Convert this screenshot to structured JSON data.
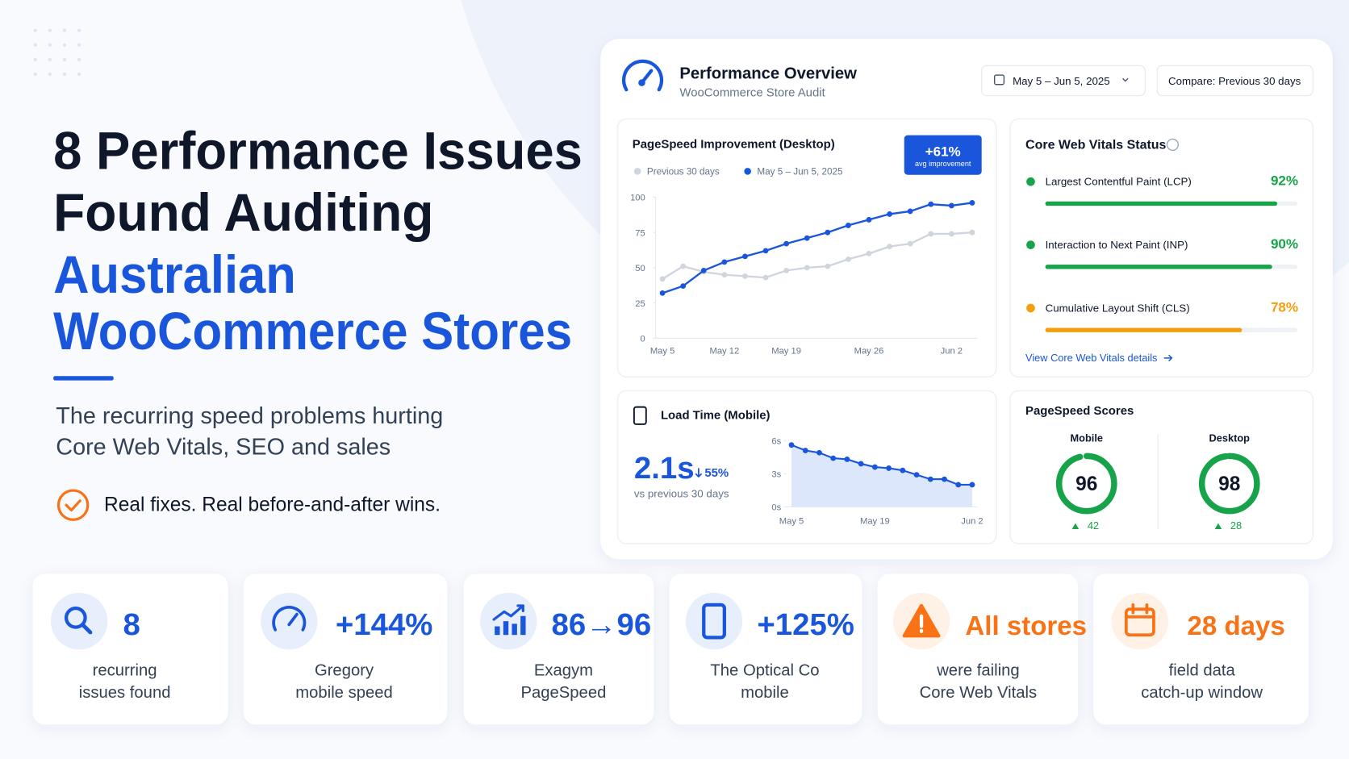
{
  "title": [
    "8 Performance Issues",
    "Found Auditing"
  ],
  "title_highlight": [
    "Australian",
    "WooCommerce Stores"
  ],
  "subtitle": [
    "The recurring speed problems hurting",
    "Core Web Vitals, SEO and sales"
  ],
  "tagline": "Real fixes.  Real before-and-after wins.",
  "dashboard": {
    "title": "Performance Overview",
    "subtitle": "WooCommerce Store Audit",
    "date_range": "May 5 – Jun 5, 2025",
    "compare": "Compare: Previous 30 days",
    "badge": {
      "value": "+61%",
      "label": "avg improvement"
    },
    "vitals": {
      "title": "Core Web Vitals Status",
      "items": [
        {
          "name": "Largest Contentful Paint (LCP)",
          "value": 92,
          "label": "92%",
          "color": "#16a34a"
        },
        {
          "name": "Interaction to Next Paint (INP)",
          "value": 90,
          "label": "90%",
          "color": "#16a34a"
        },
        {
          "name": "Cumulative Layout Shift (CLS)",
          "value": 78,
          "label": "78%",
          "color": "#f59e0b"
        }
      ],
      "link": "View Core Web Vitals details"
    },
    "load_time": {
      "value": "2.1s",
      "change": "55%",
      "note": "vs previous 30 days"
    },
    "scores": {
      "title": "PageSpeed Scores",
      "items": [
        {
          "name": "Mobile",
          "value": 96,
          "change": 42
        },
        {
          "name": "Desktop",
          "value": 98,
          "change": 28
        }
      ]
    }
  },
  "chart_data": [
    {
      "type": "line",
      "title": "PageSpeed Improvement (Desktop)",
      "categories": [
        "May 5",
        null,
        null,
        "May 12",
        null,
        null,
        "May 19",
        null,
        null,
        null,
        "May 26",
        null,
        null,
        null,
        "Jun 2",
        null
      ],
      "series": [
        {
          "name": "Previous 30 days",
          "color": "#cfd4de",
          "values": [
            42,
            51,
            47,
            45,
            44,
            43,
            48,
            50,
            51,
            56,
            60,
            65,
            67,
            74,
            74,
            75
          ]
        },
        {
          "name": "May 5 – Jun 5, 2025",
          "color": "#1a56db",
          "values": [
            32,
            37,
            48,
            54,
            58,
            62,
            67,
            71,
            75,
            80,
            84,
            88,
            90,
            95,
            94,
            96
          ]
        }
      ],
      "ylim": [
        0,
        100
      ],
      "yticks": [
        0,
        25,
        50,
        75,
        100
      ]
    },
    {
      "type": "area",
      "title": "Load Time (Mobile)",
      "categories": [
        "May 5",
        null,
        null,
        null,
        null,
        null,
        "May 19",
        null,
        null,
        null,
        null,
        null,
        null,
        "Jun 2"
      ],
      "series": [
        {
          "name": "Load time",
          "color": "#1a56db",
          "values": [
            5.6,
            5.1,
            4.9,
            4.4,
            4.3,
            3.9,
            3.6,
            3.5,
            3.3,
            2.9,
            2.5,
            2.5,
            2.0,
            2.0
          ]
        }
      ],
      "ylim": [
        0,
        6
      ],
      "yticks": [
        {
          "value": 0,
          "label": "0s"
        },
        {
          "value": 3,
          "label": "3s"
        },
        {
          "value": 6,
          "label": "6s"
        }
      ]
    }
  ],
  "stats": [
    {
      "value": "8",
      "label": [
        "recurring",
        "issues found"
      ],
      "color": "#1a56db"
    },
    {
      "value": "+144%",
      "label": [
        "Gregory",
        "mobile speed"
      ],
      "color": "#1a56db"
    },
    {
      "value": "86→96",
      "label": [
        "Exagym",
        "PageSpeed"
      ],
      "color": "#1a56db"
    },
    {
      "value": "+125%",
      "label": [
        "The Optical Co",
        "mobile"
      ],
      "color": "#1a56db"
    },
    {
      "value": "All stores",
      "label": [
        "were failing",
        "Core Web Vitals"
      ],
      "color": "#f97316"
    },
    {
      "value": "28 days",
      "label": [
        "field data",
        "catch-up window"
      ],
      "color": "#f97316"
    }
  ]
}
